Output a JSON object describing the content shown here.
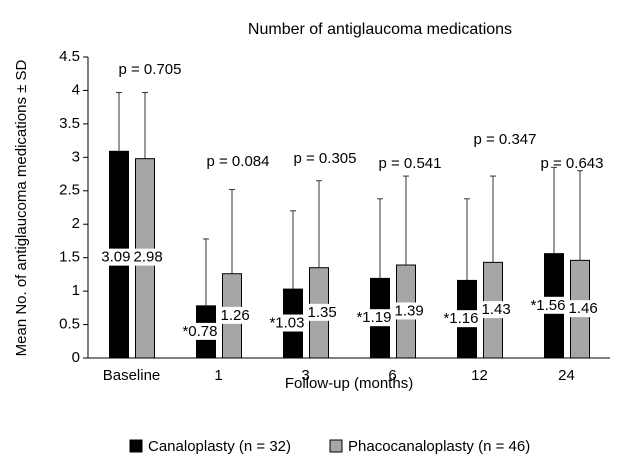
{
  "chart_data": {
    "type": "bar",
    "title": "Number of antiglaucoma medications",
    "x_label": "Follow-up (months)",
    "y_label": "Mean No. of antiglaucoma medications ± SD",
    "categories": [
      "Baseline",
      "1",
      "3",
      "6",
      "12",
      "24"
    ],
    "series": [
      {
        "name": "Canaloplasty (n = 32)",
        "color": "#000000",
        "values": [
          3.09,
          0.78,
          1.03,
          1.19,
          1.16,
          1.56
        ],
        "value_labels": [
          "3.09",
          "*0.78",
          "*1.03",
          "*1.19",
          "*1.16",
          "*1.56"
        ],
        "errors": [
          0.88,
          1.0,
          1.17,
          1.19,
          1.22,
          1.29
        ]
      },
      {
        "name": "Phacocanaloplasty (n = 46)",
        "color": "#a6a6a6",
        "values": [
          2.98,
          1.26,
          1.35,
          1.39,
          1.43,
          1.46
        ],
        "errors": [
          0.99,
          1.26,
          1.3,
          1.33,
          1.29,
          1.34
        ]
      }
    ],
    "annotations": [
      "p = 0.705",
      "p = 0.084",
      "p = 0.305",
      "p = 0.541",
      "p = 0.347",
      "p = 0.643"
    ],
    "ylim": [
      0,
      4.5
    ],
    "yticks": [
      0,
      0.5,
      1,
      1.5,
      2,
      2.5,
      3,
      3.5,
      4,
      4.5
    ],
    "grid": false,
    "legend": "bottom"
  }
}
